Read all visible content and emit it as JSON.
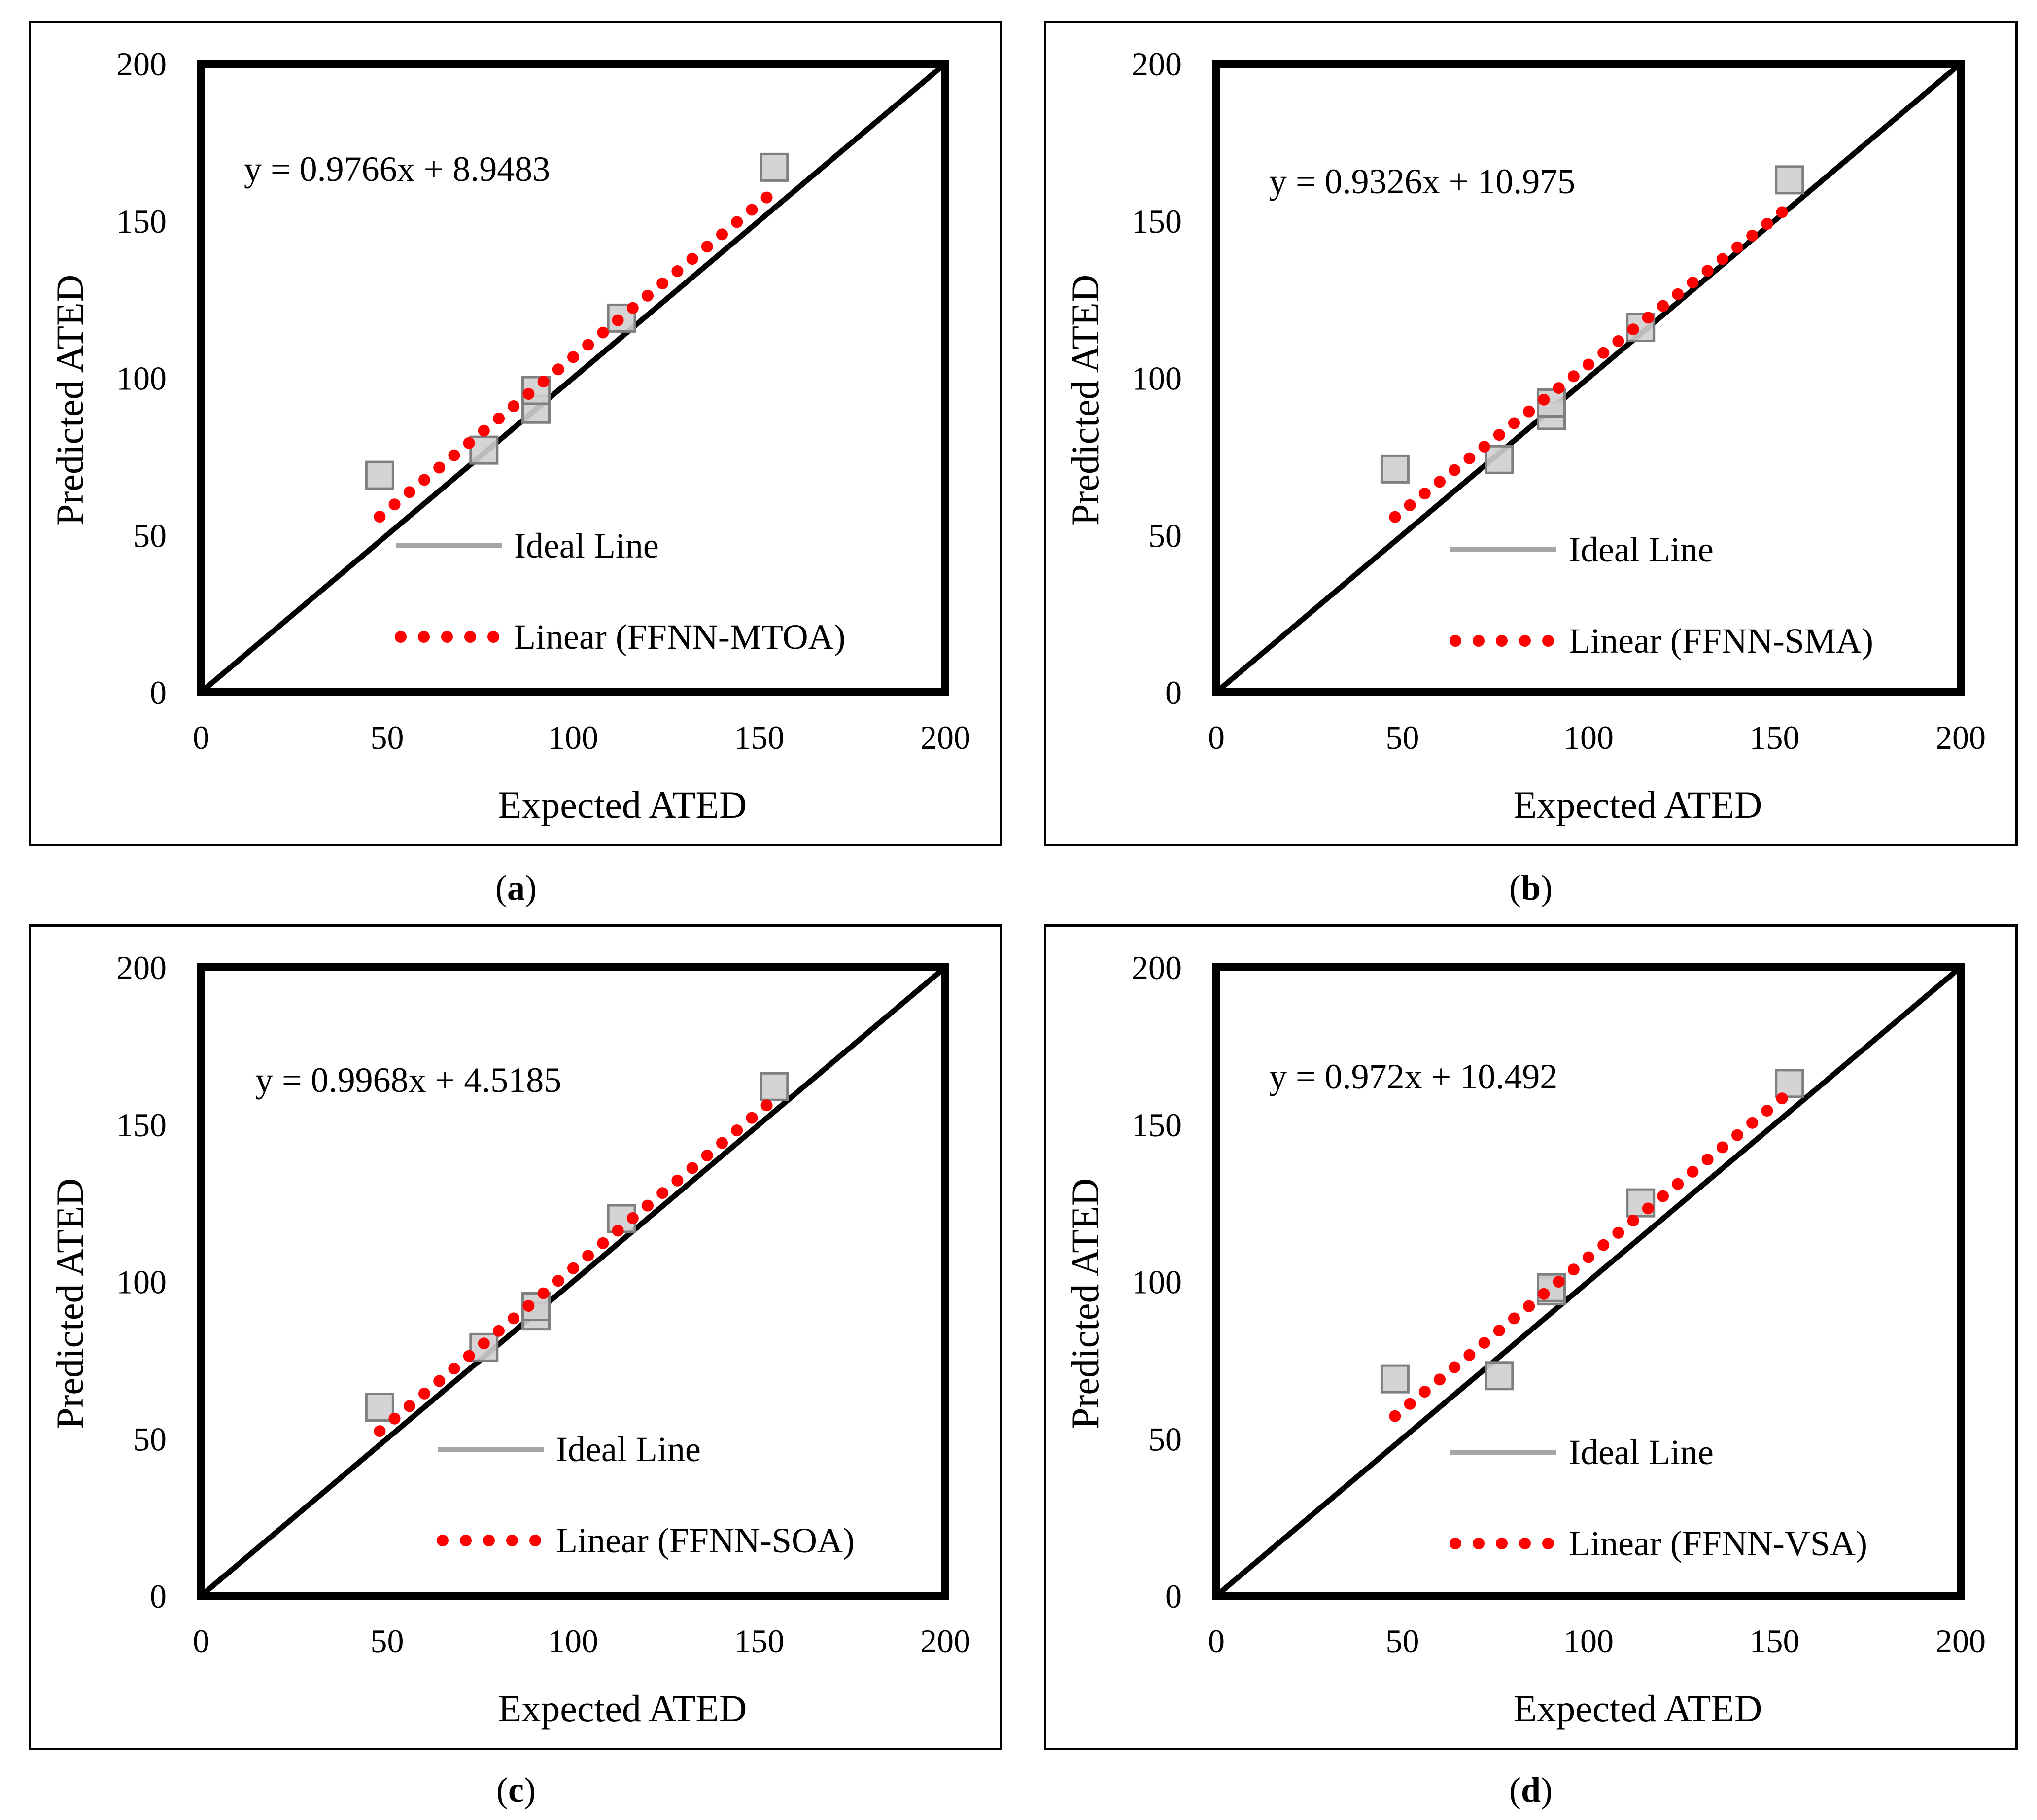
{
  "figure": {
    "colors": {
      "ideal_line": "#000000",
      "fit_line": "#ff0000",
      "legend_ideal": "#a6a6a6",
      "marker_fill": "#d0cece",
      "marker_stroke": "#7f7f7f"
    }
  },
  "chart_data": [
    {
      "id": "a",
      "caption_letter": "a",
      "type": "scatter",
      "xlabel": "Expected ATED",
      "ylabel": "Predicted ATED",
      "xlim": [
        0,
        200
      ],
      "ylim": [
        0,
        200
      ],
      "xticks": [
        "0",
        "50",
        "100",
        "150",
        "200"
      ],
      "yticks": [
        "0",
        "50",
        "100",
        "150",
        "200"
      ],
      "equation": "y = 0.9766x + 8.9483",
      "slope": 0.9766,
      "intercept": 8.9483,
      "fit_x_range": [
        48,
        152
      ],
      "legend": {
        "ideal": "Ideal Line",
        "fit": "Linear (FFNN-MTOA)"
      },
      "points": [
        {
          "x": 48,
          "y": 69
        },
        {
          "x": 76,
          "y": 77
        },
        {
          "x": 90,
          "y": 90
        },
        {
          "x": 90,
          "y": 96
        },
        {
          "x": 113,
          "y": 119
        },
        {
          "x": 154,
          "y": 167
        }
      ]
    },
    {
      "id": "b",
      "caption_letter": "b",
      "type": "scatter",
      "xlabel": "Expected ATED",
      "ylabel": "Predicted ATED",
      "xlim": [
        0,
        200
      ],
      "ylim": [
        0,
        200
      ],
      "xticks": [
        "0",
        "50",
        "100",
        "150",
        "200"
      ],
      "yticks": [
        "0",
        "50",
        "100",
        "150",
        "200"
      ],
      "equation": "y = 0.9326x + 10.975",
      "slope": 0.9326,
      "intercept": 10.975,
      "fit_x_range": [
        48,
        152
      ],
      "legend": {
        "ideal": "Ideal Line",
        "fit": "Linear (FFNN-SMA)"
      },
      "points": [
        {
          "x": 48,
          "y": 71
        },
        {
          "x": 76,
          "y": 74
        },
        {
          "x": 90,
          "y": 88
        },
        {
          "x": 90,
          "y": 92
        },
        {
          "x": 114,
          "y": 116
        },
        {
          "x": 154,
          "y": 163
        }
      ]
    },
    {
      "id": "c",
      "caption_letter": "c",
      "type": "scatter",
      "xlabel": "Expected ATED",
      "ylabel": "Predicted ATED",
      "xlim": [
        0,
        200
      ],
      "ylim": [
        0,
        200
      ],
      "xticks": [
        "0",
        "50",
        "100",
        "150",
        "200"
      ],
      "yticks": [
        "0",
        "50",
        "100",
        "150",
        "200"
      ],
      "equation": "y = 0.9968x + 4.5185",
      "slope": 0.9968,
      "intercept": 4.5185,
      "fit_x_range": [
        48,
        152
      ],
      "legend": {
        "ideal": "Ideal Line",
        "fit": "Linear (FFNN-SOA)"
      },
      "points": [
        {
          "x": 48,
          "y": 60
        },
        {
          "x": 76,
          "y": 79
        },
        {
          "x": 90,
          "y": 89
        },
        {
          "x": 90,
          "y": 92
        },
        {
          "x": 113,
          "y": 120
        },
        {
          "x": 154,
          "y": 162
        }
      ]
    },
    {
      "id": "d",
      "caption_letter": "d",
      "type": "scatter",
      "xlabel": "Expected ATED",
      "ylabel": "Predicted ATED",
      "xlim": [
        0,
        200
      ],
      "ylim": [
        0,
        200
      ],
      "xticks": [
        "0",
        "50",
        "100",
        "150",
        "200"
      ],
      "yticks": [
        "0",
        "50",
        "100",
        "150",
        "200"
      ],
      "equation": "y = 0.972x + 10.492",
      "slope": 0.972,
      "intercept": 10.492,
      "fit_x_range": [
        48,
        152
      ],
      "legend": {
        "ideal": "Ideal Line",
        "fit": "Linear (FFNN-VSA)"
      },
      "points": [
        {
          "x": 48,
          "y": 69
        },
        {
          "x": 76,
          "y": 70
        },
        {
          "x": 90,
          "y": 97
        },
        {
          "x": 90,
          "y": 98
        },
        {
          "x": 114,
          "y": 125
        },
        {
          "x": 154,
          "y": 163
        }
      ]
    }
  ]
}
